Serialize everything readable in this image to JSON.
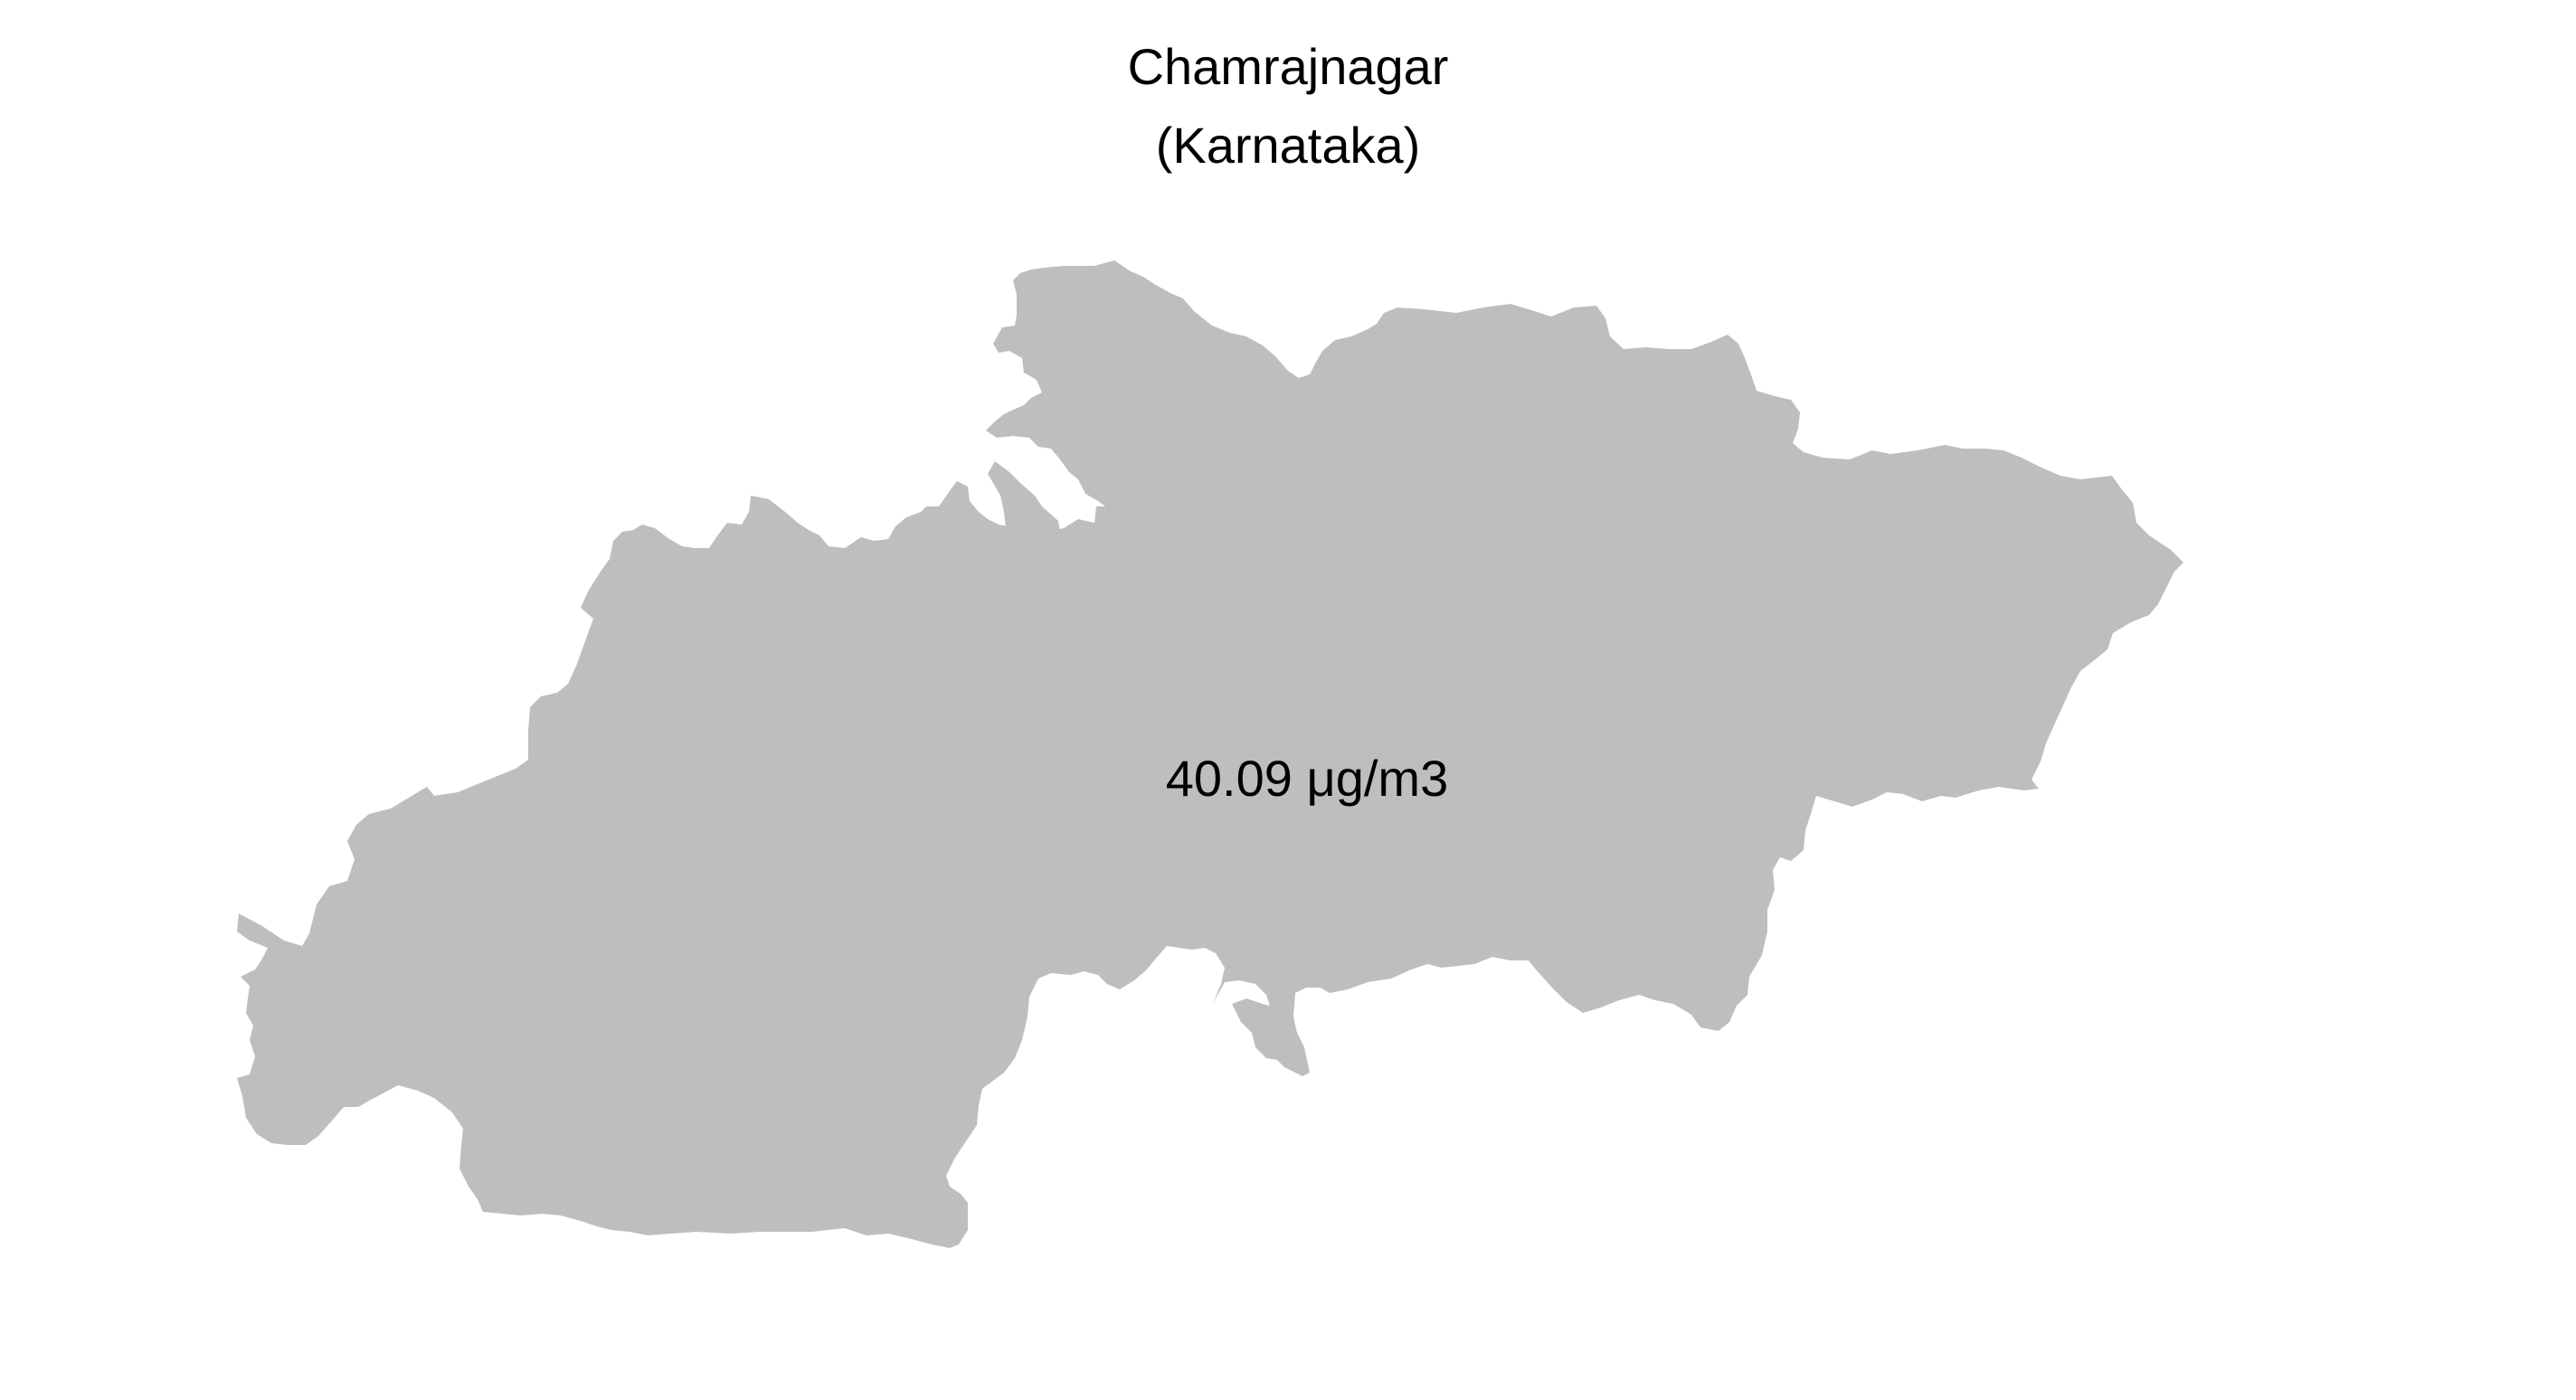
{
  "map": {
    "title": "Chamrajnagar",
    "subtitle": "(Karnataka)",
    "region_name": "Chamrajnagar",
    "value_label": "40.09 μg/m3",
    "fill_color": "#bebebe",
    "background_color": "#ffffff"
  }
}
